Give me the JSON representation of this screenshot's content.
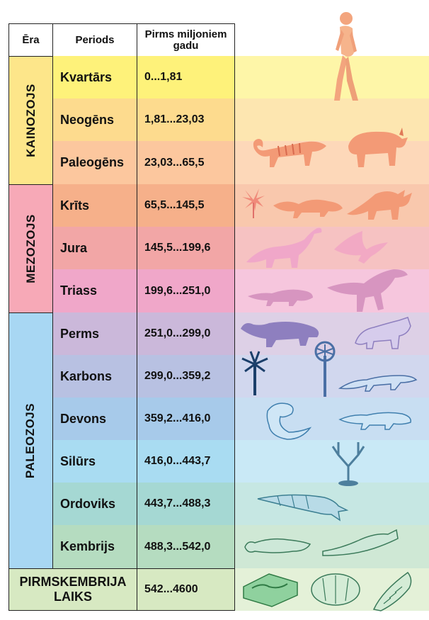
{
  "header": {
    "era": "Ēra",
    "period": "Periods",
    "age": "Pirms miljoniem gadu"
  },
  "eras": [
    {
      "name": "KAINOZOJS",
      "color": "#fde68a"
    },
    {
      "name": "MEZOZOJS",
      "color": "#f7a9b7"
    },
    {
      "name": "PALEOZOJS",
      "color": "#a8d7f3"
    }
  ],
  "periods": [
    {
      "name": "Kvartārs",
      "range": "0...1,81",
      "color": "#fef27a"
    },
    {
      "name": "Neogēns",
      "range": "1,81...23,03",
      "color": "#fddb8e"
    },
    {
      "name": "Paleogēns",
      "range": "23,03...65,5",
      "color": "#fcc79e"
    },
    {
      "name": "Krīts",
      "range": "65,5...145,5",
      "color": "#f6b08a"
    },
    {
      "name": "Jura",
      "range": "145,5...199,6",
      "color": "#f2a6a6"
    },
    {
      "name": "Triass",
      "range": "199,6...251,0",
      "color": "#f0a7c9"
    },
    {
      "name": "Perms",
      "range": "251,0...299,0",
      "color": "#cbb8da"
    },
    {
      "name": "Karbons",
      "range": "299,0...359,2",
      "color": "#b8c1e2"
    },
    {
      "name": "Devons",
      "range": "359,2...416,0",
      "color": "#a7caea"
    },
    {
      "name": "Silūrs",
      "range": "416,0...443,7",
      "color": "#a9dcf2"
    },
    {
      "name": "Ordoviks",
      "range": "443,7...488,3",
      "color": "#a5d8d3"
    },
    {
      "name": "Kembrijs",
      "range": "488,3...542,0",
      "color": "#b5dcc0"
    }
  ],
  "precambrian": {
    "line1": "PIRMSKEMBRIJA",
    "line2": "LAIKS",
    "range": "542...4600",
    "color": "#d7e9c2"
  }
}
